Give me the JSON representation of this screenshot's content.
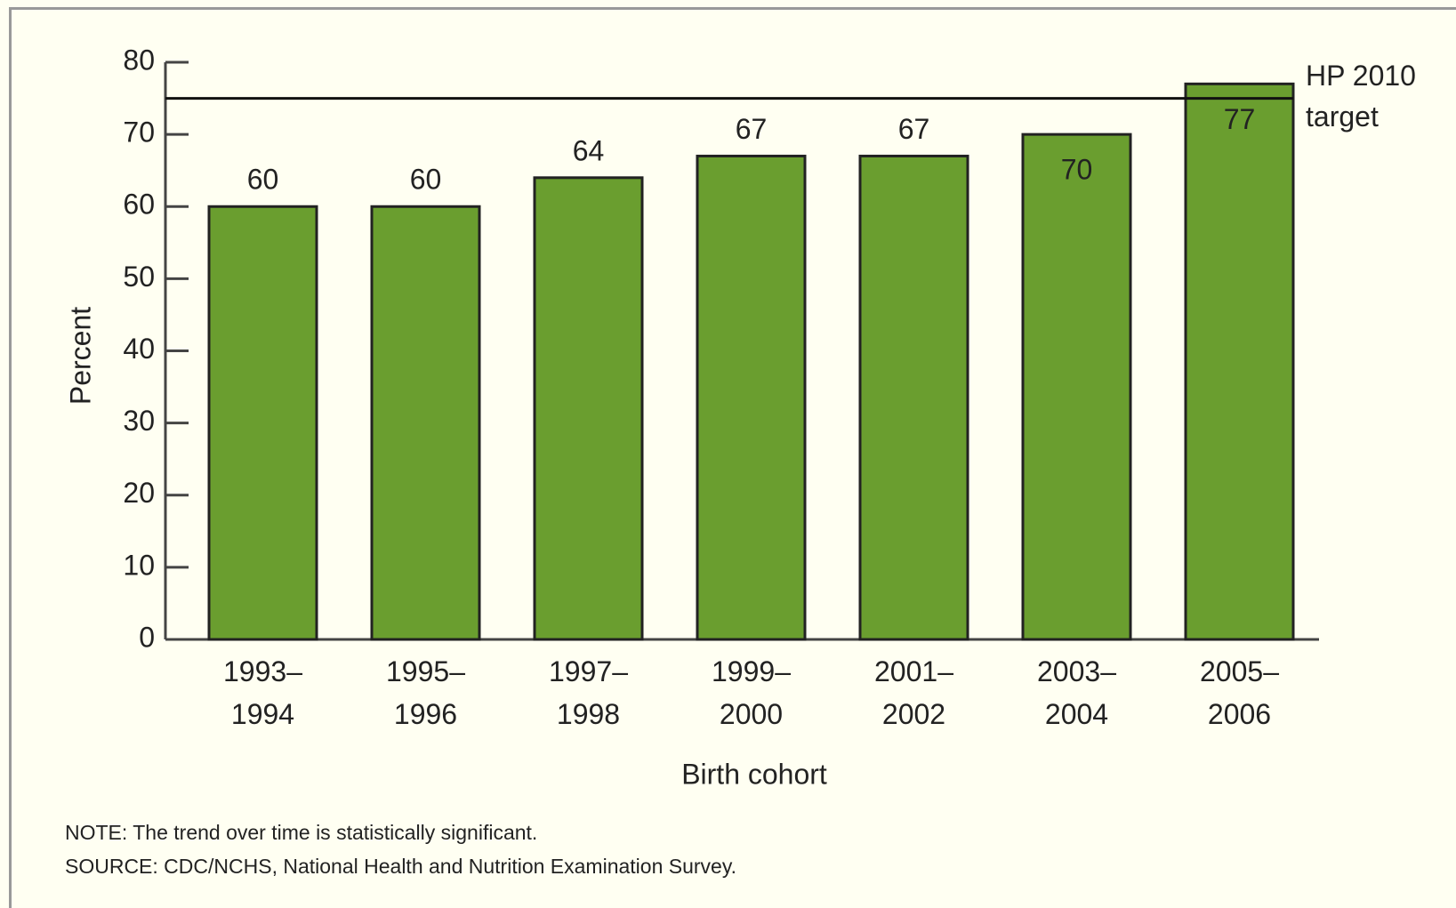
{
  "chart_data": {
    "type": "bar",
    "categories": [
      "1993–1994",
      "1995–1996",
      "1997–1998",
      "1999–2000",
      "2001–2002",
      "2003–2004",
      "2005–2006"
    ],
    "values": [
      60,
      60,
      64,
      67,
      67,
      70,
      77
    ],
    "color": "#6a9e2f",
    "ylabel": "Percent",
    "xlabel": "Birth cohort",
    "ylim": [
      0,
      80
    ],
    "yticks": [
      0,
      10,
      20,
      30,
      40,
      50,
      60,
      70,
      80
    ],
    "reference_line": {
      "value": 75,
      "label": "HP 2010 target"
    },
    "notes": [
      "NOTE: The trend over time is statistically significant.",
      "SOURCE: CDC/NCHS, National Health and Nutrition Examination Survey."
    ]
  }
}
